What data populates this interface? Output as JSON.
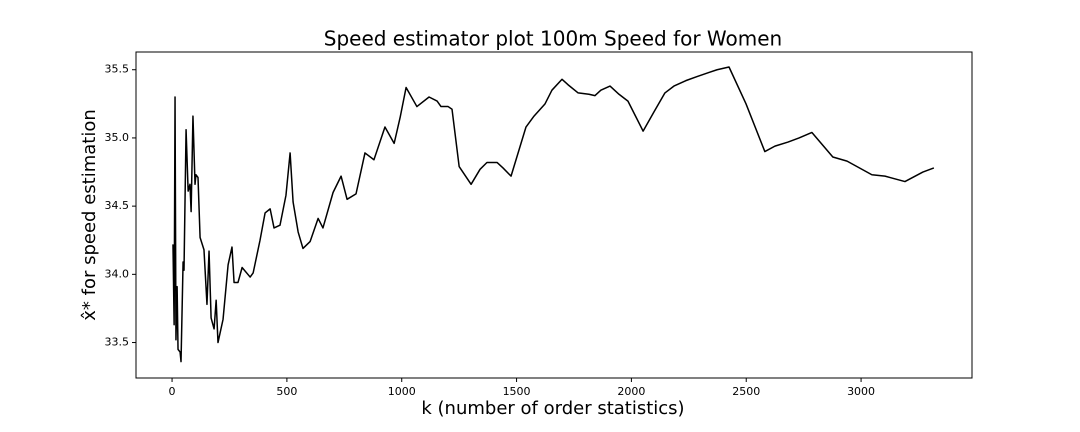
{
  "chart_data": {
    "type": "line",
    "title": "Speed estimator plot 100m Speed for Women",
    "x_label": "k (number of order statistics)",
    "y_label": "x̂* for speed estimation",
    "x": [
      4,
      9,
      13,
      17,
      22,
      26,
      35,
      39,
      48,
      52,
      61,
      70,
      78,
      83,
      91,
      100,
      104,
      113,
      122,
      139,
      152,
      161,
      170,
      183,
      192,
      200,
      222,
      244,
      261,
      270,
      287,
      305,
      340,
      353,
      383,
      405,
      427,
      444,
      470,
      496,
      514,
      527,
      549,
      570,
      601,
      636,
      657,
      701,
      736,
      762,
      801,
      840,
      879,
      927,
      967,
      993,
      1019,
      1066,
      1119,
      1154,
      1171,
      1202,
      1219,
      1250,
      1302,
      1341,
      1371,
      1415,
      1441,
      1476,
      1541,
      1576,
      1624,
      1654,
      1698,
      1724,
      1768,
      1815,
      1841,
      1867,
      1907,
      1946,
      1985,
      2051,
      2098,
      2146,
      2185,
      2237,
      2286,
      2338,
      2373,
      2425,
      2499,
      2581,
      2625,
      2682,
      2730,
      2786,
      2877,
      2939,
      3047,
      3104,
      3191,
      3269,
      3317
    ],
    "series": [
      {
        "color": "#000000",
        "values": [
          34.22,
          33.63,
          35.3,
          33.52,
          33.91,
          33.45,
          33.43,
          33.36,
          34.09,
          34.03,
          35.06,
          34.61,
          34.66,
          34.46,
          35.16,
          34.66,
          34.73,
          34.71,
          34.27,
          34.18,
          33.78,
          34.17,
          33.68,
          33.6,
          33.81,
          33.5,
          33.67,
          34.07,
          34.2,
          33.94,
          33.94,
          34.05,
          33.98,
          34.01,
          34.25,
          34.45,
          34.48,
          34.34,
          34.36,
          34.58,
          34.89,
          34.53,
          34.31,
          34.19,
          34.24,
          34.41,
          34.34,
          34.6,
          34.72,
          34.55,
          34.59,
          34.89,
          34.84,
          35.08,
          34.96,
          35.15,
          35.37,
          35.23,
          35.3,
          35.27,
          35.23,
          35.23,
          35.21,
          34.79,
          34.66,
          34.77,
          34.82,
          34.82,
          34.78,
          34.72,
          35.08,
          35.16,
          35.25,
          35.35,
          35.43,
          35.39,
          35.33,
          35.32,
          35.31,
          35.35,
          35.38,
          35.32,
          35.27,
          35.05,
          35.19,
          35.33,
          35.38,
          35.42,
          35.45,
          35.48,
          35.5,
          35.52,
          35.25,
          34.9,
          34.94,
          34.97,
          35.0,
          35.04,
          34.86,
          34.83,
          34.73,
          34.72,
          34.68,
          34.75,
          34.78
        ]
      }
    ],
    "xlim": [
      -157,
      3483
    ],
    "ylim": [
      33.24,
      35.63
    ],
    "xticks": [
      0,
      500,
      1000,
      1500,
      2000,
      2500,
      3000
    ],
    "yticks": [
      33.5,
      {
        "value": 34,
        "label": "34.0"
      },
      34.5,
      {
        "value": 35,
        "label": "35.0"
      },
      35.5
    ],
    "grid": false
  }
}
